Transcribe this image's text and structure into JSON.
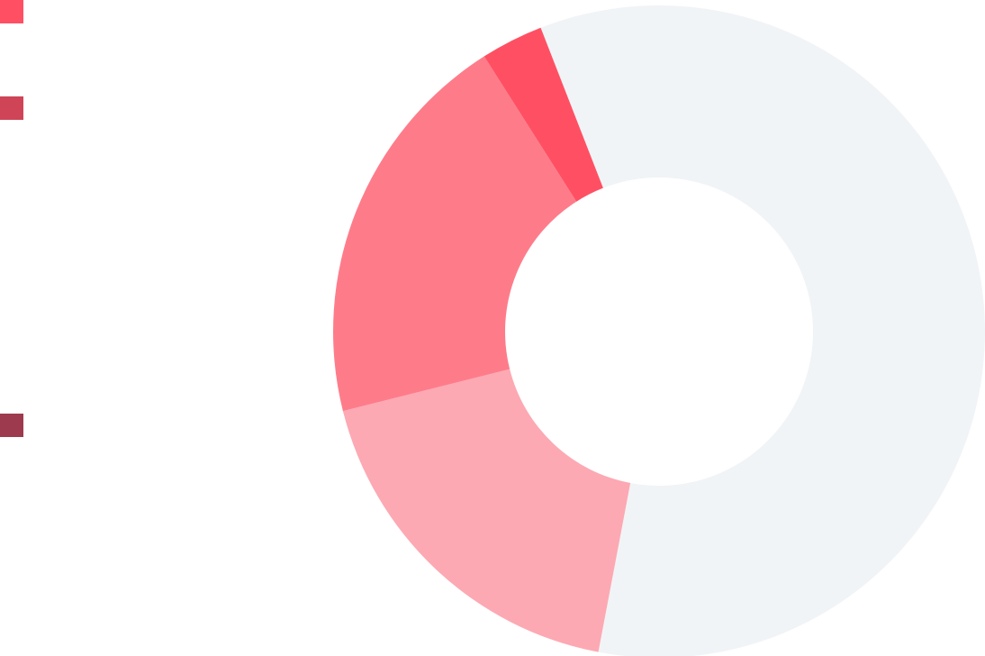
{
  "chart_data": {
    "type": "pie",
    "donut": true,
    "title": "",
    "slices": [
      {
        "label": "",
        "value": 58.9,
        "color": "#f1f4f6"
      },
      {
        "label": "",
        "value": 18.1,
        "color": "#fca9b3"
      },
      {
        "label": "",
        "value": 19.9,
        "color": "#fe7c8a"
      },
      {
        "label": "",
        "value": 3.1,
        "color": "#ff5063"
      }
    ],
    "legend": {
      "placement": "left",
      "entries": [
        {
          "label": "",
          "color": "#ff5063"
        },
        {
          "label": "",
          "color": "#cf4457"
        },
        {
          "label": "",
          "color": "#9e3a4d"
        }
      ]
    }
  }
}
